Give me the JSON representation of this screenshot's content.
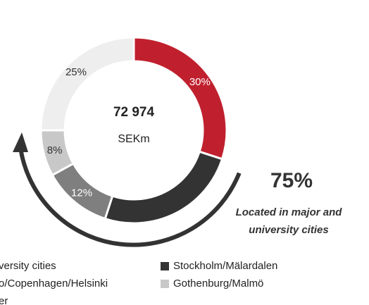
{
  "chart_data": {
    "type": "donut",
    "center_value": "72 974",
    "center_label": "SEKm",
    "categories": [
      "versity cities",
      "Stockholm/Mälardalen",
      "o/Copenhagen/Helsinki",
      "Gothenburg/Malmö",
      "er"
    ],
    "values": [
      30,
      25,
      12,
      8,
      25
    ],
    "value_labels": [
      "30%",
      "25%",
      "12%",
      "8%",
      "25%"
    ],
    "colors": [
      "#c0202e",
      "#333333",
      "#7f7f7f",
      "#c8c8c8",
      "#eeeeee"
    ],
    "annotation_value": "75%",
    "annotation_text": [
      "Located in major and",
      "university cities"
    ]
  }
}
